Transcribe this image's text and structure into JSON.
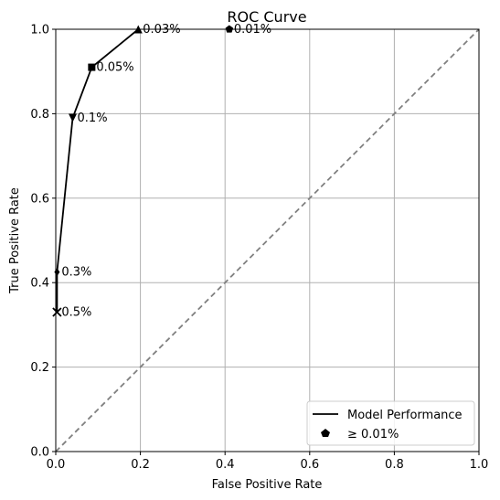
{
  "chart_data": {
    "type": "line",
    "title": "ROC Curve",
    "xlabel": "False Positive Rate",
    "ylabel": "True Positive Rate",
    "xlim": [
      0.0,
      1.0
    ],
    "ylim": [
      0.0,
      1.0
    ],
    "grid": true,
    "x_ticks": [
      "0.0",
      "0.2",
      "0.4",
      "0.6",
      "0.8",
      "1.0"
    ],
    "y_ticks": [
      "0.0",
      "0.2",
      "0.4",
      "0.6",
      "0.8",
      "1.0"
    ],
    "legend_position": "bottom-right",
    "series": [
      {
        "name": "Model Performance",
        "color": "#000000",
        "x": [
          0.003,
          0.003,
          0.04,
          0.085,
          0.195
        ],
        "y": [
          0.33,
          0.425,
          0.79,
          0.91,
          1.0
        ]
      }
    ],
    "points": [
      {
        "label": "0.5%",
        "x": 0.003,
        "y": 0.33,
        "marker": "x"
      },
      {
        "label": "0.3%",
        "x": 0.003,
        "y": 0.425,
        "marker": "d"
      },
      {
        "label": "0.1%",
        "x": 0.04,
        "y": 0.79,
        "marker": "v"
      },
      {
        "label": "0.05%",
        "x": 0.085,
        "y": 0.91,
        "marker": "s"
      },
      {
        "label": "0.03%",
        "x": 0.195,
        "y": 1.0,
        "marker": "^"
      },
      {
        "label": "0.01%",
        "x": 0.41,
        "y": 1.0,
        "marker": "p"
      }
    ],
    "diagonal": {
      "x": [
        0,
        1
      ],
      "y": [
        0,
        1
      ],
      "color": "#808080",
      "style": "dashed"
    },
    "legend": [
      {
        "label": "Model Performance",
        "symbol": "line"
      },
      {
        "label": "≥ 0.01%",
        "symbol": "pentagon"
      }
    ]
  }
}
